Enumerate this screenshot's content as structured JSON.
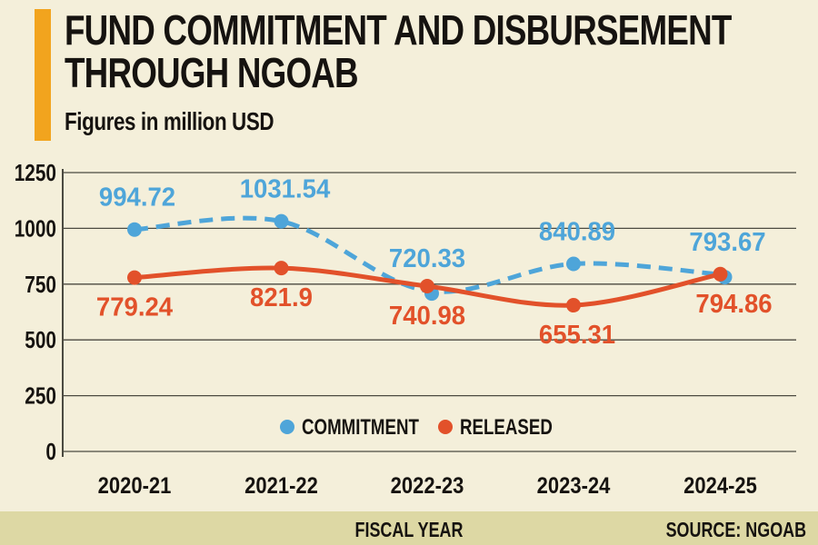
{
  "header": {
    "title_line1": "FUND COMMITMENT AND DISBURSEMENT",
    "title_line2": "THROUGH NGOAB",
    "subtitle": "Figures in million USD"
  },
  "footer": {
    "xlabel": "FISCAL YEAR",
    "source": "SOURCE: NGOAB"
  },
  "colors": {
    "background": "#f4efda",
    "footer_band": "#ddd8a4",
    "accent_bar": "#f2a41e",
    "commitment": "#4ea5d9",
    "released": "#e2512a",
    "gridline": "#4b4a40",
    "text": "#161310"
  },
  "chart_data": {
    "type": "line",
    "title": "FUND COMMITMENT AND DISBURSEMENT THROUGH NGOAB",
    "subtitle": "Figures in million USD",
    "xlabel": "FISCAL YEAR",
    "source": "SOURCE: NGOAB",
    "categories": [
      "2020-21",
      "2021-22",
      "2022-23",
      "2023-24",
      "2024-25"
    ],
    "series": [
      {
        "name": "COMMITMENT",
        "color": "#4ea5d9",
        "style": "dashed",
        "values": [
          994.72,
          1031.54,
          720.33,
          840.89,
          793.67
        ]
      },
      {
        "name": "RELEASED",
        "color": "#e2512a",
        "style": "solid",
        "values": [
          779.24,
          821.9,
          740.98,
          655.31,
          794.86
        ]
      }
    ],
    "y_ticks": [
      0,
      250,
      500,
      750,
      1000,
      1250
    ],
    "ylim": [
      0,
      1250
    ],
    "grid": "horizontal",
    "legend_position": "bottom-center",
    "data_labels": true
  }
}
